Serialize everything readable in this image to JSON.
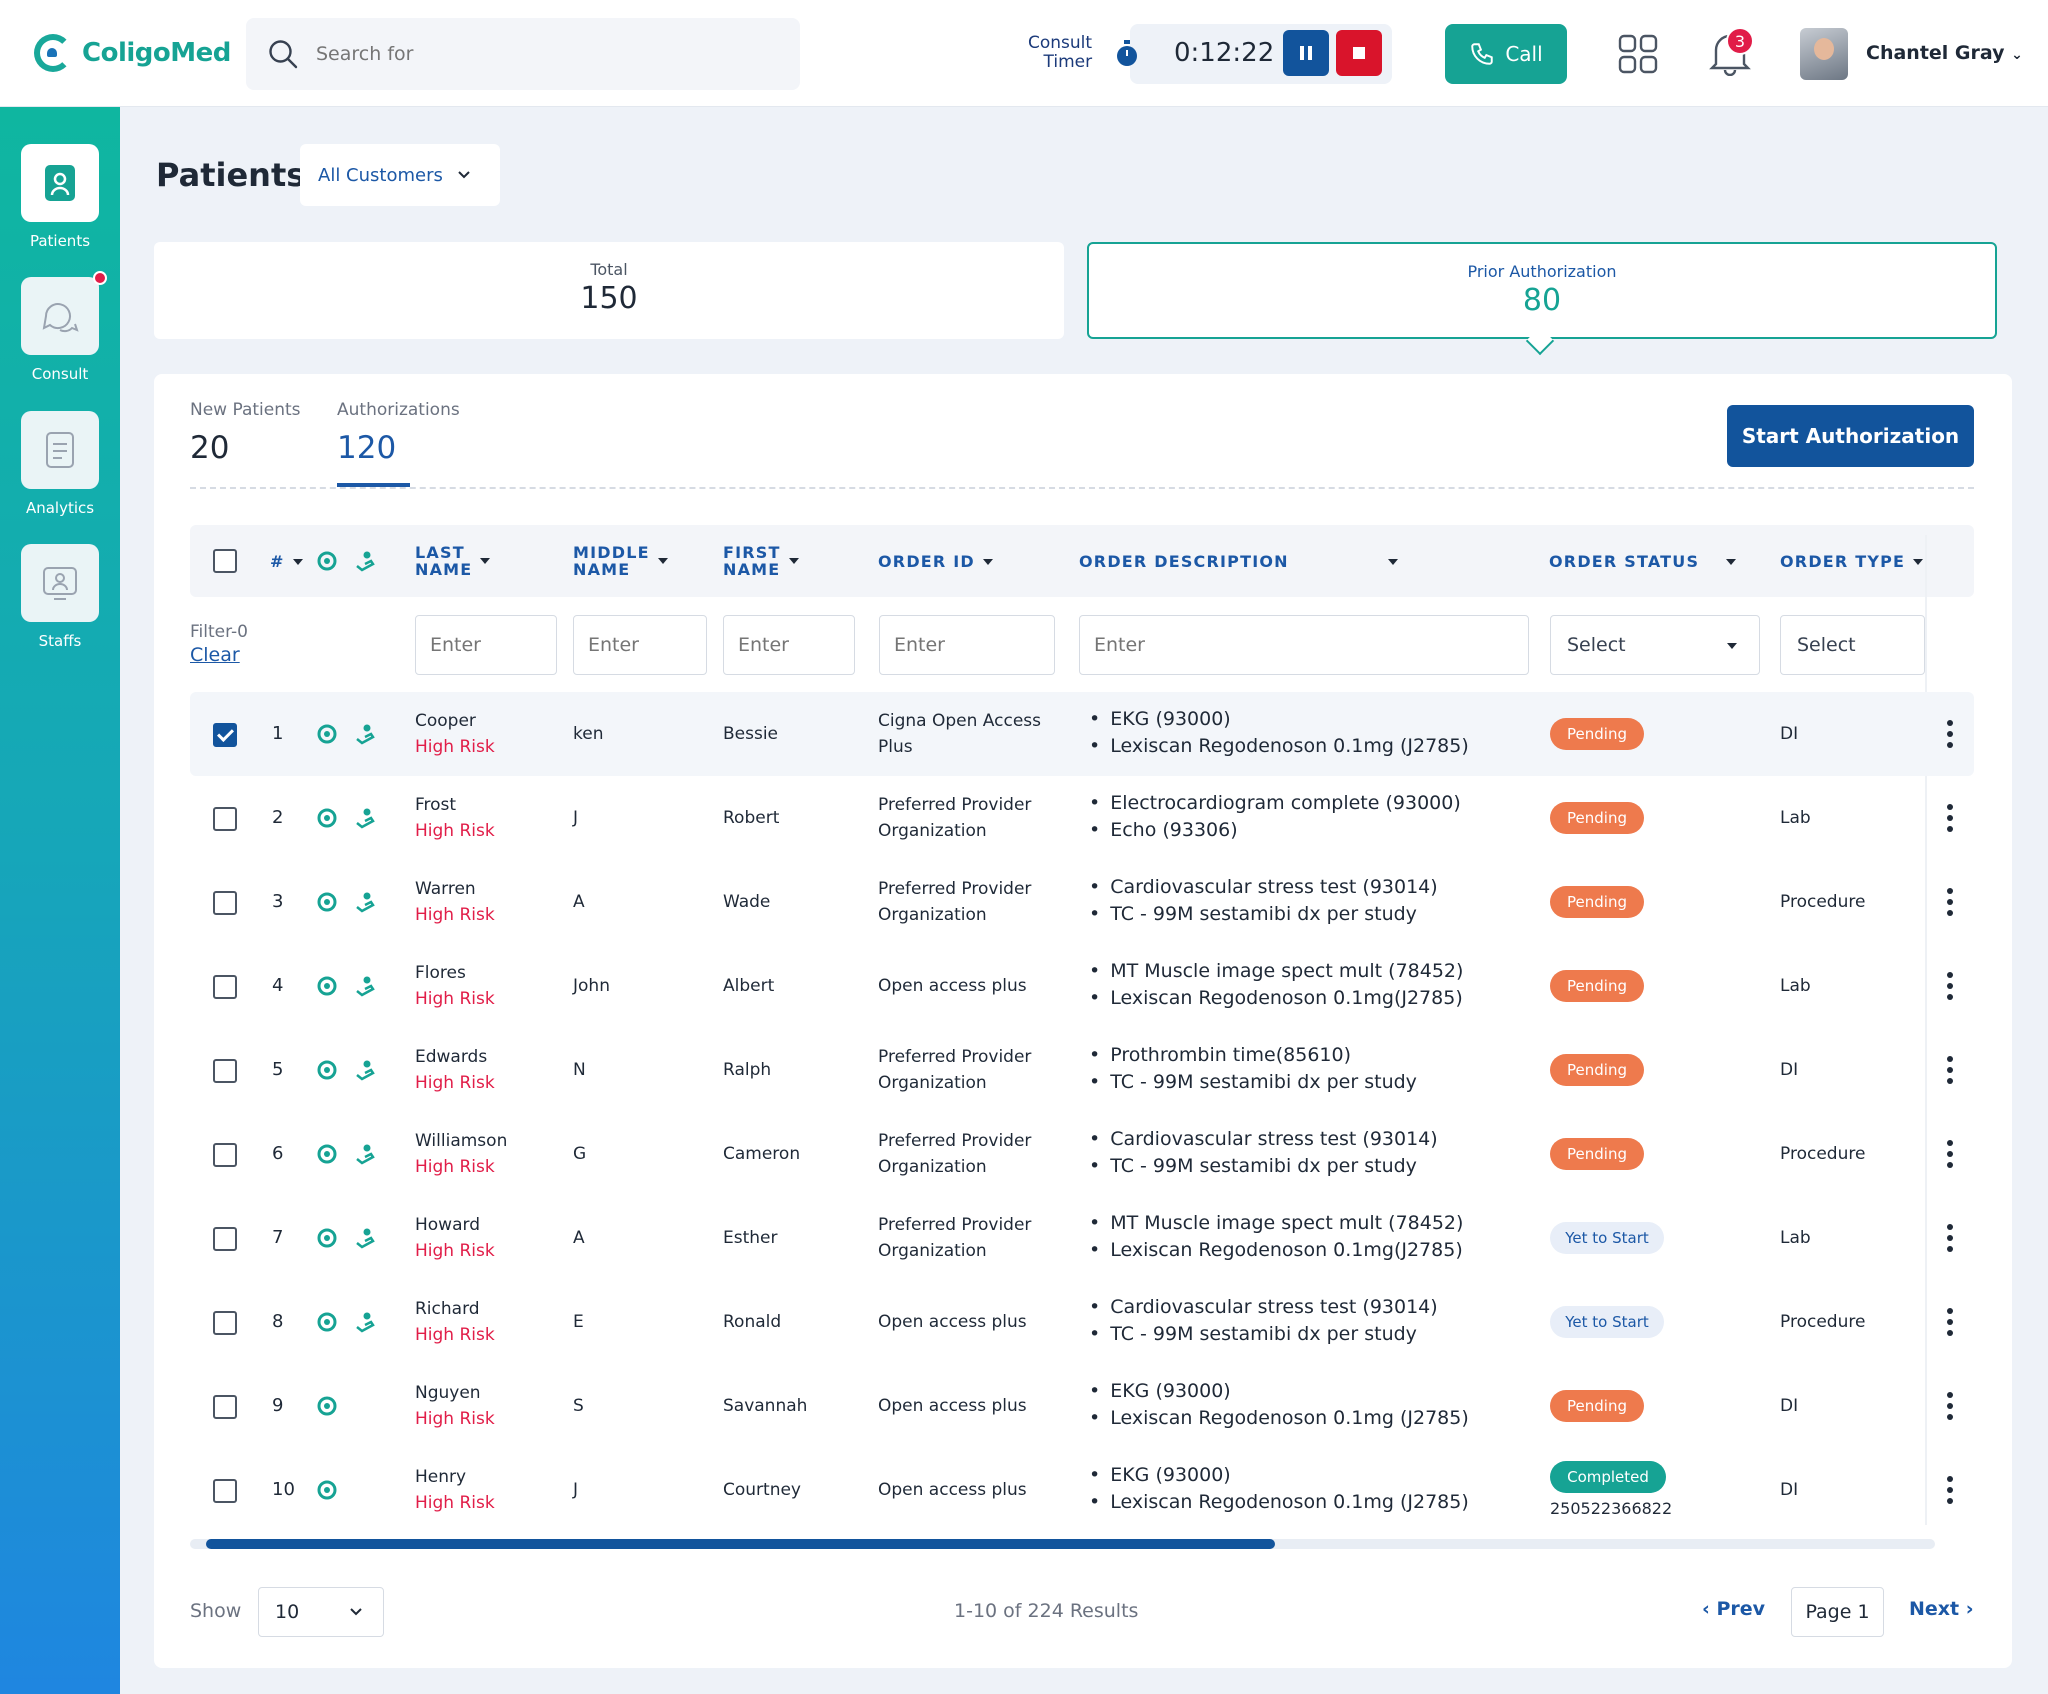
{
  "header": {
    "logo_text": "ColigoMed",
    "search_placeholder": "Search for",
    "timer_label_1": "Consult",
    "timer_label_2": "Timer",
    "timer_value": "0:12:22",
    "call_label": "Call",
    "notifications_count": "3",
    "user_name": "Chantel Gray"
  },
  "sidebar": [
    {
      "label": "Patients",
      "icon": "patients-icon",
      "active": true
    },
    {
      "label": "Consult",
      "icon": "chat-icon",
      "has_dot": true
    },
    {
      "label": "Analytics",
      "icon": "analytics-icon"
    },
    {
      "label": "Staffs",
      "icon": "staff-icon"
    }
  ],
  "page": {
    "title": "Patients",
    "customer_filter": "All Customers"
  },
  "stats": {
    "total_label": "Total",
    "total_value": "150",
    "prior_label": "Prior Authorization",
    "prior_value": "80"
  },
  "subtabs": {
    "new_label": "New Patients",
    "new_value": "20",
    "auth_label": "Authorizations",
    "auth_value": "120"
  },
  "start_button": "Start Authorization",
  "columns": {
    "num": "#",
    "last_1": "LAST",
    "last_2": "NAME",
    "middle_1": "MIDDLE",
    "middle_2": "NAME",
    "first_1": "FIRST",
    "first_2": "NAME",
    "order_id": "ORDER ID",
    "order_desc": "ORDER DESCRIPTION",
    "order_status": "ORDER STATUS",
    "order_type": "ORDER TYPE"
  },
  "filters": {
    "count_label": "Filter-0",
    "clear_label": "Clear",
    "input_placeholder": "Enter",
    "select_placeholder": "Select"
  },
  "rows": [
    {
      "n": "1",
      "last": "Cooper",
      "risk": "High Risk",
      "middle": "ken",
      "first": "Bessie",
      "order_id_1": "Cigna Open Access",
      "order_id_2": "Plus",
      "desc_1": "EKG (93000)",
      "desc_2": "Lexiscan Regodenoson 0.1mg (J2785)",
      "status": "Pending",
      "type": "DI",
      "checked": true
    },
    {
      "n": "2",
      "last": "Frost",
      "risk": "High Risk",
      "middle": "J",
      "first": "Robert",
      "order_id_1": "Preferred Provider",
      "order_id_2": "Organization",
      "desc_1": "Electrocardiogram complete (93000)",
      "desc_2": "Echo (93306)",
      "status": "Pending",
      "type": "Lab"
    },
    {
      "n": "3",
      "last": "Warren",
      "risk": "High Risk",
      "middle": "A",
      "first": "Wade",
      "order_id_1": "Preferred Provider",
      "order_id_2": "Organization",
      "desc_1": "Cardiovascular stress test (93014)",
      "desc_2": "TC - 99M sestamibi dx per study",
      "status": "Pending",
      "type": "Procedure"
    },
    {
      "n": "4",
      "last": "Flores",
      "risk": "High Risk",
      "middle": "John",
      "first": "Albert",
      "order_id_1": "Open access plus",
      "order_id_2": "",
      "desc_1": "MT Muscle image spect mult (78452)",
      "desc_2": "Lexiscan Regodenoson 0.1mg(J2785)",
      "status": "Pending",
      "type": "Lab"
    },
    {
      "n": "5",
      "last": "Edwards",
      "risk": "High Risk",
      "middle": "N",
      "first": "Ralph",
      "order_id_1": "Preferred Provider",
      "order_id_2": "Organization",
      "desc_1": "Prothrombin time(85610)",
      "desc_2": "TC - 99M sestamibi dx per study",
      "status": "Pending",
      "type": "DI"
    },
    {
      "n": "6",
      "last": "Williamson",
      "risk": "High Risk",
      "middle": "G",
      "first": "Cameron",
      "order_id_1": "Preferred Provider",
      "order_id_2": "Organization",
      "desc_1": "Cardiovascular stress test (93014)",
      "desc_2": "TC - 99M sestamibi dx per study",
      "status": "Pending",
      "type": "Procedure"
    },
    {
      "n": "7",
      "last": "Howard",
      "risk": "High Risk",
      "middle": "A",
      "first": "Esther",
      "order_id_1": "Preferred Provider",
      "order_id_2": "Organization",
      "desc_1": "MT Muscle image spect mult (78452)",
      "desc_2": "Lexiscan Regodenoson 0.1mg(J2785)",
      "status": "Yet to Start",
      "type": "Lab"
    },
    {
      "n": "8",
      "last": "Richard",
      "risk": "High Risk",
      "middle": "E",
      "first": "Ronald",
      "order_id_1": "Open access plus",
      "order_id_2": "",
      "desc_1": "Cardiovascular stress test (93014)",
      "desc_2": "TC - 99M sestamibi dx per study",
      "status": "Yet to Start",
      "type": "Procedure"
    },
    {
      "n": "9",
      "last": "Nguyen",
      "risk": "High Risk",
      "middle": "S",
      "first": "Savannah",
      "order_id_1": "Open access plus",
      "order_id_2": "",
      "desc_1": "EKG (93000)",
      "desc_2": "Lexiscan Regodenoson 0.1mg (J2785)",
      "status": "Pending",
      "type": "DI"
    },
    {
      "n": "10",
      "last": "Henry",
      "risk": "High Risk",
      "middle": "J",
      "first": "Courtney",
      "order_id_1": "Open access plus",
      "order_id_2": "",
      "desc_1": "EKG (93000)",
      "desc_2": "Lexiscan Regodenoson 0.1mg (J2785)",
      "status": "Completed",
      "status_sub": "250522366822",
      "type": "DI"
    }
  ],
  "pagination": {
    "show_label": "Show",
    "page_size": "10",
    "results": "1-10 of 224 Results",
    "prev": "Prev",
    "page": "Page 1",
    "next": "Next"
  },
  "colors": {
    "teal": "#16a394",
    "blue": "#12549c",
    "pending": "#ee7a4d",
    "risk": "#e11d48"
  }
}
